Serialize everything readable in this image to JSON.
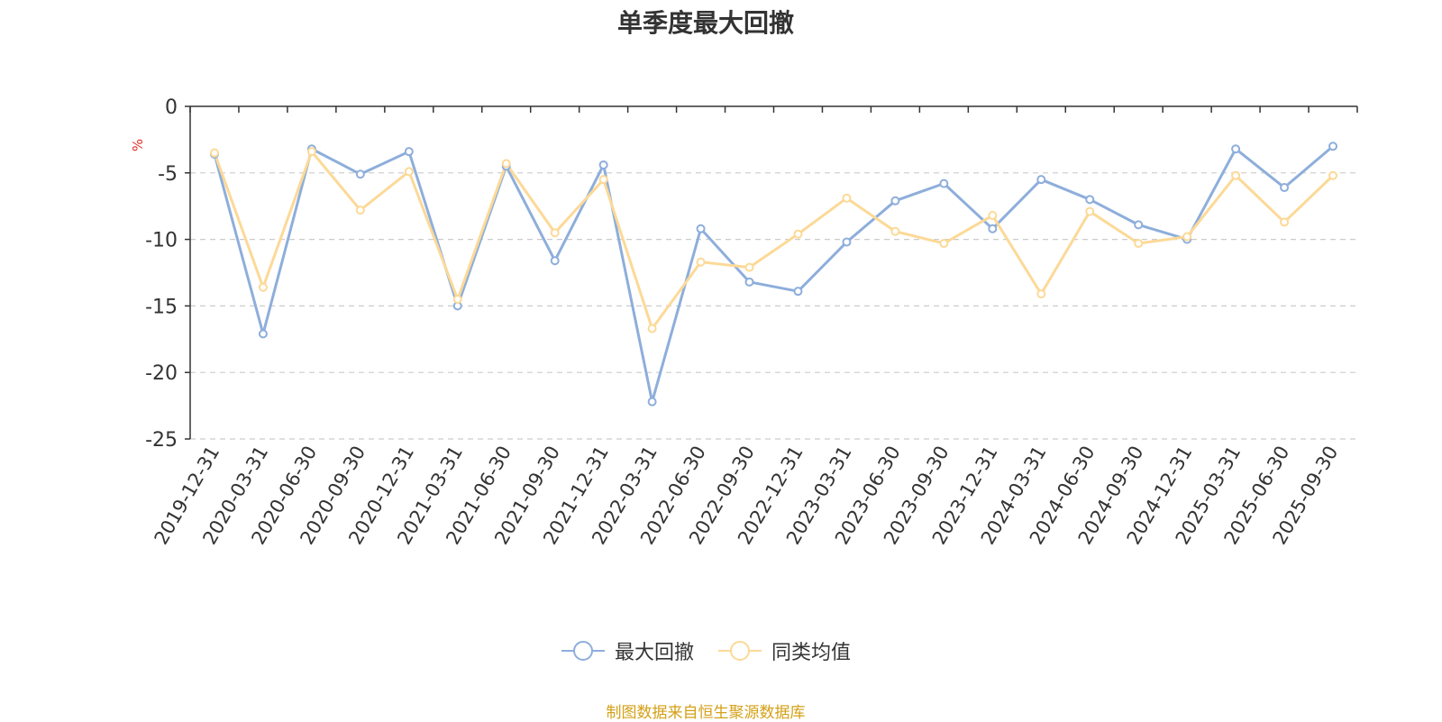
{
  "chart_data": {
    "type": "line",
    "title": "单季度最大回撤",
    "ylabel": "%",
    "ylim": [
      -25,
      0
    ],
    "yticks": [
      0,
      -5,
      -10,
      -15,
      -20,
      -25
    ],
    "grid": true,
    "legend_position": "bottom",
    "categories": [
      "2019-12-31",
      "2020-03-31",
      "2020-06-30",
      "2020-09-30",
      "2020-12-31",
      "2021-03-31",
      "2021-06-30",
      "2021-09-30",
      "2021-12-31",
      "2022-03-31",
      "2022-06-30",
      "2022-09-30",
      "2022-12-31",
      "2023-03-31",
      "2023-06-30",
      "2023-09-30",
      "2023-12-31",
      "2024-03-31",
      "2024-06-30",
      "2024-09-30",
      "2024-12-31",
      "2025-03-31",
      "2025-06-30",
      "2025-09-30"
    ],
    "series": [
      {
        "name": "最大回撤",
        "color": "#8eaedb",
        "values": [
          -3.6,
          -17.1,
          -3.2,
          -5.1,
          -3.4,
          -15.0,
          -4.5,
          -11.6,
          -4.4,
          -22.2,
          -9.2,
          -13.2,
          -13.9,
          -10.2,
          -7.1,
          -5.8,
          -9.2,
          -5.5,
          -7.0,
          -8.9,
          -10.0,
          -3.2,
          -6.1,
          -3.0
        ]
      },
      {
        "name": "同类均值",
        "color": "#fcd997",
        "values": [
          -3.5,
          -13.6,
          -3.4,
          -7.8,
          -4.9,
          -14.5,
          -4.3,
          -9.5,
          -5.5,
          -16.7,
          -11.7,
          -12.1,
          -9.6,
          -6.9,
          -9.4,
          -10.3,
          -8.2,
          -14.1,
          -7.9,
          -10.3,
          -9.8,
          -5.2,
          -8.7,
          -5.2
        ]
      }
    ]
  },
  "source_note": "制图数据来自恒生聚源数据库"
}
